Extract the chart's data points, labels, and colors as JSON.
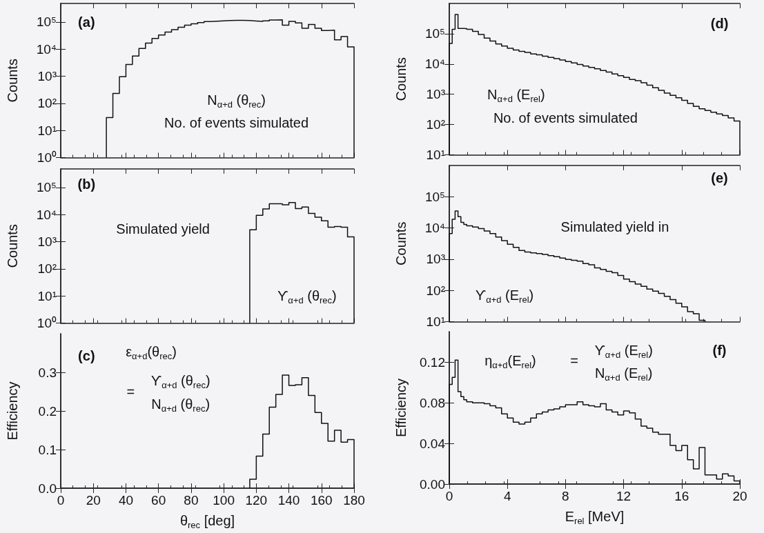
{
  "chart_data": [
    {
      "type": "histogram",
      "ylabel": "Counts",
      "log": true,
      "tick_labels": "y",
      "color": "#111111",
      "bins": [
        28,
        32,
        36,
        40,
        44,
        48,
        52,
        56,
        60,
        64,
        68,
        72,
        76,
        80,
        84,
        88,
        92,
        96,
        100,
        104,
        108,
        112,
        116,
        120,
        124,
        128,
        132,
        136,
        140,
        144,
        148,
        152,
        156,
        160,
        164,
        168,
        172,
        176,
        180
      ],
      "values": [
        30,
        230,
        950,
        2700,
        5500,
        10500,
        16500,
        24500,
        33000,
        42000,
        52000,
        64000,
        76000,
        85000,
        95000,
        103000,
        107000,
        110000,
        112000,
        115000,
        115000,
        112000,
        108000,
        105000,
        110000,
        118000,
        120000,
        76000,
        105000,
        92000,
        58000,
        81000,
        58000,
        48000,
        50000,
        22000,
        29000,
        12000
      ],
      "xlim": [
        0,
        180
      ],
      "xticks": [
        0,
        20,
        40,
        60,
        80,
        100,
        120,
        140,
        160,
        180
      ],
      "ylim": [
        1,
        480000
      ],
      "yticks": [
        {
          "value": 1,
          "label": "10⁰"
        },
        {
          "value": 10,
          "label": "10¹"
        },
        {
          "value": 100,
          "label": "10²"
        },
        {
          "value": 1000,
          "label": "10³"
        },
        {
          "value": 10000,
          "label": "10⁴"
        },
        {
          "value": 100000,
          "label": "10⁵"
        }
      ],
      "annotations": [
        "(a)",
        "N$_{α+d}$ (θ$_{rec}$)",
        "No. of events simulated"
      ]
    },
    {
      "type": "histogram",
      "ylabel": "Counts",
      "log": true,
      "tick_labels": "y",
      "color": "#111111",
      "bins": [
        116,
        120,
        124,
        128,
        132,
        136,
        140,
        144,
        148,
        152,
        156,
        160,
        164,
        168,
        172,
        176,
        180
      ],
      "values": [
        2750,
        9400,
        16000,
        25000,
        25000,
        23000,
        27500,
        16500,
        19000,
        11000,
        8000,
        5900,
        3400,
        3600,
        3400,
        1500
      ],
      "xlim": [
        0,
        180
      ],
      "xticks": [
        0,
        20,
        40,
        60,
        80,
        100,
        120,
        140,
        160,
        180
      ],
      "ylim": [
        1,
        480000
      ],
      "yticks": [
        {
          "value": 1,
          "label": "10⁰"
        },
        {
          "value": 10,
          "label": "10¹"
        },
        {
          "value": 100,
          "label": "10²"
        },
        {
          "value": 1000,
          "label": "10³"
        },
        {
          "value": 10000,
          "label": "10⁴"
        },
        {
          "value": 100000,
          "label": "10⁵"
        }
      ],
      "annotations": [
        "(b)",
        "Simulated yield",
        "ϒ$_{α+d}$ (θ$_{rec}$)"
      ]
    },
    {
      "type": "histogram",
      "ylabel": "Efficiency",
      "xlabel": "θ$_{rec}$ [deg]",
      "color": "#111111",
      "bins": [
        116,
        120,
        124,
        128,
        132,
        136,
        140,
        144,
        148,
        152,
        156,
        160,
        164,
        168,
        172,
        176,
        180
      ],
      "values": [
        0.023,
        0.083,
        0.14,
        0.21,
        0.243,
        0.293,
        0.266,
        0.268,
        0.286,
        0.24,
        0.196,
        0.168,
        0.122,
        0.15,
        0.119,
        0.126
      ],
      "xlim": [
        0,
        180
      ],
      "xticks": [
        0,
        20,
        40,
        60,
        80,
        100,
        120,
        140,
        160,
        180
      ],
      "ylim": [
        0,
        0.4
      ],
      "yticks": [
        {
          "value": 0,
          "label": "0.0"
        },
        0.1,
        0.2,
        0.3
      ],
      "annotations": [
        "(c)",
        "ε$_{α+d}$(θ$_{rec}$)",
        "=",
        "ϒ$_{α+d}$ (θ$_{rec}$)",
        "N$_{α+d}$ (θ$_{rec}$)"
      ]
    },
    {
      "type": "histogram",
      "ylabel": "Counts",
      "log": true,
      "tick_labels": "y",
      "color": "#111111",
      "bins": [
        0,
        0.2,
        0.4,
        0.6,
        0.8,
        1.0,
        1.2,
        1.6,
        2,
        2.4,
        2.8,
        3.2,
        3.6,
        4,
        4.4,
        4.8,
        5.2,
        5.6,
        6,
        6.4,
        6.8,
        7.2,
        7.6,
        8,
        8.4,
        8.8,
        9.2,
        9.6,
        10,
        10.4,
        10.8,
        11.2,
        11.6,
        12,
        12.4,
        12.8,
        13.2,
        13.6,
        14,
        14.4,
        14.8,
        15.2,
        15.6,
        16,
        16.4,
        16.8,
        17.2,
        17.6,
        18,
        18.4,
        18.8,
        19.2,
        19.6,
        20
      ],
      "values": [
        48000,
        140000,
        430000,
        150000,
        150000,
        148000,
        140000,
        120000,
        95000,
        72000,
        57000,
        46000,
        39000,
        33000,
        29000,
        26000,
        24000,
        21500,
        20000,
        18000,
        16500,
        15000,
        13500,
        12000,
        10800,
        9700,
        8600,
        7700,
        6900,
        6100,
        5400,
        4700,
        4100,
        3600,
        3100,
        2800,
        2400,
        2000,
        1650,
        1350,
        1100,
        920,
        770,
        630,
        500,
        400,
        330,
        290,
        255,
        225,
        200,
        165,
        130
      ],
      "xlim": [
        0,
        20
      ],
      "xticks": [
        0,
        4,
        8,
        12,
        16,
        20
      ],
      "ylim": [
        10,
        1000000
      ],
      "yticks": [
        {
          "value": 10,
          "label": "10¹"
        },
        {
          "value": 100,
          "label": "10²"
        },
        {
          "value": 1000,
          "label": "10³"
        },
        {
          "value": 10000,
          "label": "10⁴"
        },
        {
          "value": 100000,
          "label": "10⁵"
        }
      ],
      "annotations": [
        "(d)",
        "N$_{α+d}$ (E$_{rel}$)",
        "No. of events simulated"
      ]
    },
    {
      "type": "histogram",
      "ylabel": "Counts",
      "log": true,
      "tick_labels": "y",
      "color": "#111111",
      "bins": [
        0,
        0.2,
        0.4,
        0.6,
        0.8,
        1.0,
        1.2,
        1.6,
        2,
        2.4,
        2.8,
        3.2,
        3.6,
        4,
        4.4,
        4.8,
        5.2,
        5.6,
        6,
        6.4,
        6.8,
        7.2,
        7.6,
        8,
        8.4,
        8.8,
        9.2,
        9.6,
        10,
        10.4,
        10.8,
        11.2,
        11.6,
        12,
        12.4,
        12.8,
        13.2,
        13.6,
        14,
        14.4,
        14.8,
        15.2,
        15.6,
        16,
        16.4,
        16.8,
        17.2,
        17.6
      ],
      "values": [
        6600,
        19000,
        35000,
        23000,
        15000,
        13000,
        11700,
        10700,
        9500,
        8000,
        6600,
        5100,
        3900,
        3000,
        2400,
        1900,
        1700,
        1600,
        1520,
        1420,
        1300,
        1200,
        1090,
        980,
        920,
        870,
        720,
        660,
        530,
        470,
        410,
        370,
        300,
        230,
        190,
        160,
        135,
        110,
        95,
        80,
        65,
        51,
        39,
        30,
        21,
        18,
        11
      ],
      "xlim": [
        0,
        20
      ],
      "xticks": [
        0,
        4,
        8,
        12,
        16,
        20
      ],
      "ylim": [
        10,
        1000000
      ],
      "yticks": [
        {
          "value": 10,
          "label": "10¹"
        },
        {
          "value": 100,
          "label": "10²"
        },
        {
          "value": 1000,
          "label": "10³"
        },
        {
          "value": 10000,
          "label": "10⁴"
        },
        {
          "value": 100000,
          "label": "10⁵"
        }
      ],
      "annotations": [
        "(e)",
        "Simulated yield in",
        "ϒ$_{α+d}$ (E$_{rel}$)"
      ]
    },
    {
      "type": "histogram",
      "ylabel": "Efficiency",
      "xlabel": "E$_{rel}$ [MeV]",
      "color": "#111111",
      "bins": [
        0,
        0.2,
        0.4,
        0.6,
        0.8,
        1.0,
        1.2,
        1.6,
        2,
        2.4,
        2.8,
        3.2,
        3.6,
        4,
        4.4,
        4.8,
        5.2,
        5.6,
        6,
        6.4,
        6.8,
        7.2,
        7.6,
        8,
        8.4,
        8.8,
        9.2,
        9.6,
        10,
        10.4,
        10.8,
        11.2,
        11.6,
        12,
        12.4,
        12.8,
        13.2,
        13.6,
        14,
        14.4,
        14.8,
        15.2,
        15.6,
        16,
        16.4,
        16.8,
        17.2,
        17.6,
        18,
        18.4,
        18.8,
        19.2,
        19.6,
        20
      ],
      "values": [
        0.098,
        0.105,
        0.122,
        0.091,
        0.086,
        0.083,
        0.081,
        0.08,
        0.08,
        0.079,
        0.077,
        0.075,
        0.069,
        0.065,
        0.061,
        0.059,
        0.061,
        0.065,
        0.069,
        0.071,
        0.073,
        0.074,
        0.076,
        0.078,
        0.078,
        0.081,
        0.078,
        0.077,
        0.076,
        0.079,
        0.073,
        0.071,
        0.068,
        0.072,
        0.07,
        0.064,
        0.057,
        0.055,
        0.051,
        0.049,
        0.049,
        0.038,
        0.033,
        0.038,
        0.024,
        0.015,
        0.036,
        0.009,
        0.009,
        0.005,
        0.01,
        0.008,
        0.003
      ],
      "xlim": [
        0,
        20
      ],
      "xticks": [
        0,
        4,
        8,
        12,
        16,
        20
      ],
      "ylim": [
        0,
        0.15
      ],
      "yticks": [
        {
          "value": 0,
          "label": "0.00"
        },
        {
          "value": 0.04,
          "label": "0.04"
        },
        {
          "value": 0.08,
          "label": "0.08"
        },
        {
          "value": 0.12,
          "label": "0.12"
        }
      ],
      "annotations": [
        "(f)",
        "η$_{α+d}$(E$_{rel}$)",
        "=",
        "ϒ$_{α+d}$ (E$_{rel}$)",
        "N$_{α+d}$ (E$_{rel}$)"
      ]
    }
  ]
}
